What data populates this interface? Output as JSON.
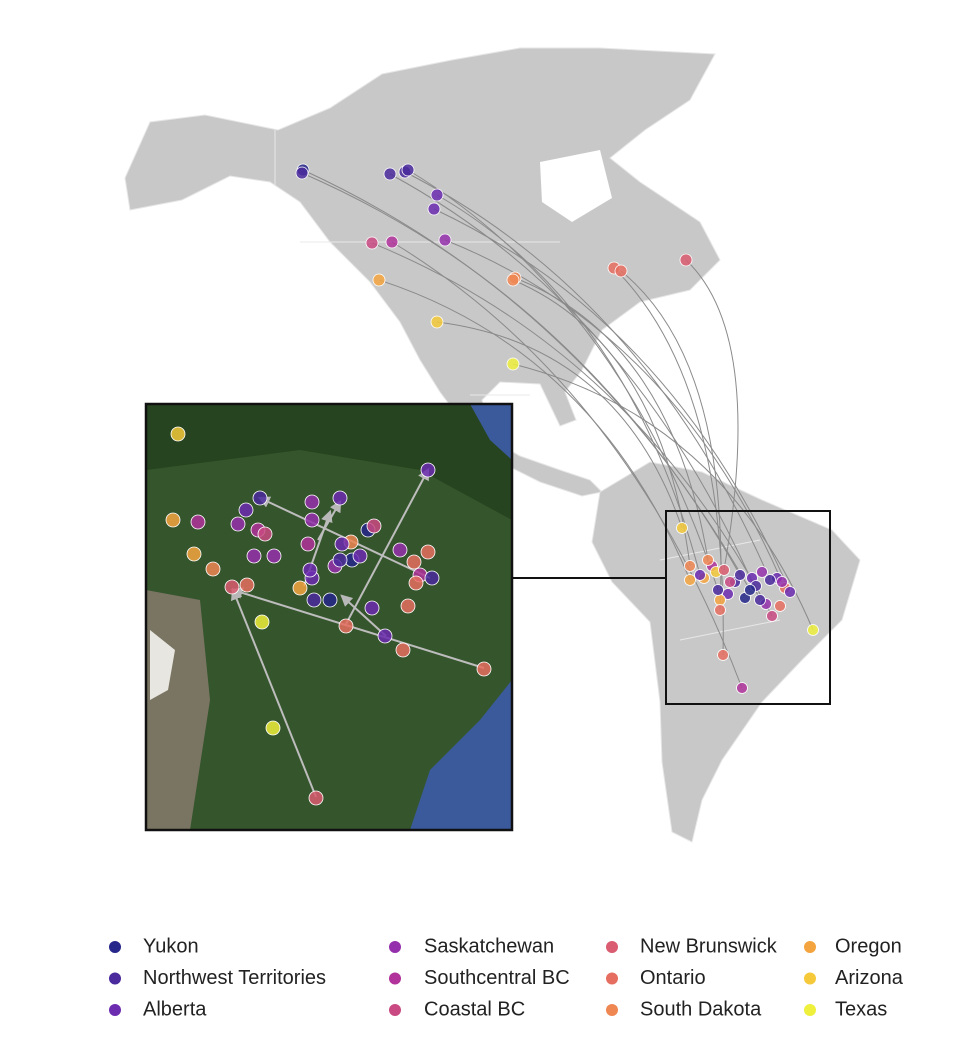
{
  "legend": {
    "items": [
      {
        "label": "Yukon",
        "color": "#25278a"
      },
      {
        "label": "Northwest Territories",
        "color": "#4a2a9c"
      },
      {
        "label": "Alberta",
        "color": "#6c2cb0"
      },
      {
        "label": "Saskatchewan",
        "color": "#9530ad"
      },
      {
        "label": "Southcentral BC",
        "color": "#b0329a"
      },
      {
        "label": "Coastal BC",
        "color": "#c94a82"
      },
      {
        "label": "New Brunswick",
        "color": "#d95c70"
      },
      {
        "label": "Ontario",
        "color": "#e66e60"
      },
      {
        "label": "South Dakota",
        "color": "#ef8753"
      },
      {
        "label": "Oregon",
        "color": "#f4a43f"
      },
      {
        "label": "Arizona",
        "color": "#f5c93a"
      },
      {
        "label": "Texas",
        "color": "#eef03c"
      }
    ]
  }
}
